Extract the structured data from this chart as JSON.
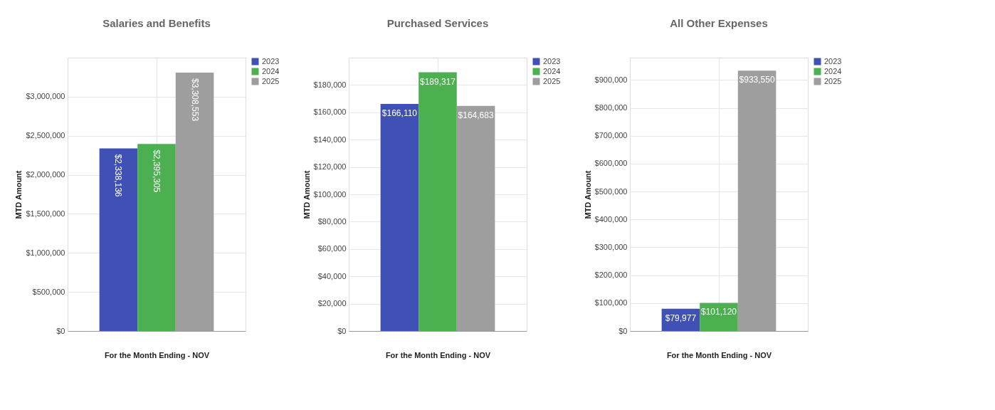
{
  "chart_data": [
    {
      "type": "bar",
      "title": "Salaries and Benefits",
      "xlabel": "For the Month Ending - NOV",
      "ylabel": "MTD Amount",
      "categories": [
        null
      ],
      "grid": true,
      "legend": "top right",
      "tick_labels": "y",
      "ylim": [
        0,
        3500000
      ],
      "yticks": [
        {
          "value": 0,
          "label": "$0"
        },
        {
          "value": 500000,
          "label": "$500,000"
        },
        {
          "value": 1000000,
          "label": "$1,000,000"
        },
        {
          "value": 1500000,
          "label": "$1,500,000"
        },
        {
          "value": 2000000,
          "label": "$2,000,000"
        },
        {
          "value": 2500000,
          "label": "$2,500,000"
        },
        {
          "value": 3000000,
          "label": "$3,000,000"
        }
      ],
      "series": [
        {
          "name": "2023",
          "color": "#3f51b5",
          "values": [
            2338136
          ],
          "value_labels": [
            "$2,338,136"
          ]
        },
        {
          "name": "2024",
          "color": "#4caf50",
          "values": [
            2395305
          ],
          "value_labels": [
            "$2,395,305"
          ]
        },
        {
          "name": "2025",
          "color": "#9e9e9e",
          "values": [
            3308553
          ],
          "value_labels": [
            "$3,308,553"
          ]
        }
      ]
    },
    {
      "type": "bar",
      "title": "Purchased Services",
      "xlabel": "For the Month Ending - NOV",
      "ylabel": "MTD Amount",
      "categories": [
        null
      ],
      "grid": true,
      "legend": "top right",
      "tick_labels": "y",
      "ylim": [
        0,
        200000
      ],
      "yticks": [
        {
          "value": 0,
          "label": "$0"
        },
        {
          "value": 20000,
          "label": "$20,000"
        },
        {
          "value": 40000,
          "label": "$40,000"
        },
        {
          "value": 60000,
          "label": "$60,000"
        },
        {
          "value": 80000,
          "label": "$80,000"
        },
        {
          "value": 100000,
          "label": "$100,000"
        },
        {
          "value": 120000,
          "label": "$120,000"
        },
        {
          "value": 140000,
          "label": "$140,000"
        },
        {
          "value": 160000,
          "label": "$160,000"
        },
        {
          "value": 180000,
          "label": "$180,000"
        }
      ],
      "series": [
        {
          "name": "2023",
          "color": "#3f51b5",
          "values": [
            166110
          ],
          "value_labels": [
            "$166,110"
          ]
        },
        {
          "name": "2024",
          "color": "#4caf50",
          "values": [
            189317
          ],
          "value_labels": [
            "$189,317"
          ]
        },
        {
          "name": "2025",
          "color": "#9e9e9e",
          "values": [
            164683
          ],
          "value_labels": [
            "$164,683"
          ]
        }
      ]
    },
    {
      "type": "bar",
      "title": "All Other Expenses",
      "xlabel": "For the Month Ending - NOV",
      "ylabel": "MTD Amount",
      "categories": [
        null
      ],
      "grid": true,
      "legend": "top right",
      "tick_labels": "y",
      "ylim": [
        0,
        980000
      ],
      "yticks": [
        {
          "value": 0,
          "label": "$0"
        },
        {
          "value": 100000,
          "label": "$100,000"
        },
        {
          "value": 200000,
          "label": "$200,000"
        },
        {
          "value": 300000,
          "label": "$300,000"
        },
        {
          "value": 400000,
          "label": "$400,000"
        },
        {
          "value": 500000,
          "label": "$500,000"
        },
        {
          "value": 600000,
          "label": "$600,000"
        },
        {
          "value": 700000,
          "label": "$700,000"
        },
        {
          "value": 800000,
          "label": "$800,000"
        },
        {
          "value": 900000,
          "label": "$900,000"
        }
      ],
      "series": [
        {
          "name": "2023",
          "color": "#3f51b5",
          "values": [
            79977
          ],
          "value_labels": [
            "$79,977"
          ]
        },
        {
          "name": "2024",
          "color": "#4caf50",
          "values": [
            101120
          ],
          "value_labels": [
            "$101,120"
          ]
        },
        {
          "name": "2025",
          "color": "#9e9e9e",
          "values": [
            933550
          ],
          "value_labels": [
            "$933,550"
          ]
        }
      ]
    }
  ]
}
